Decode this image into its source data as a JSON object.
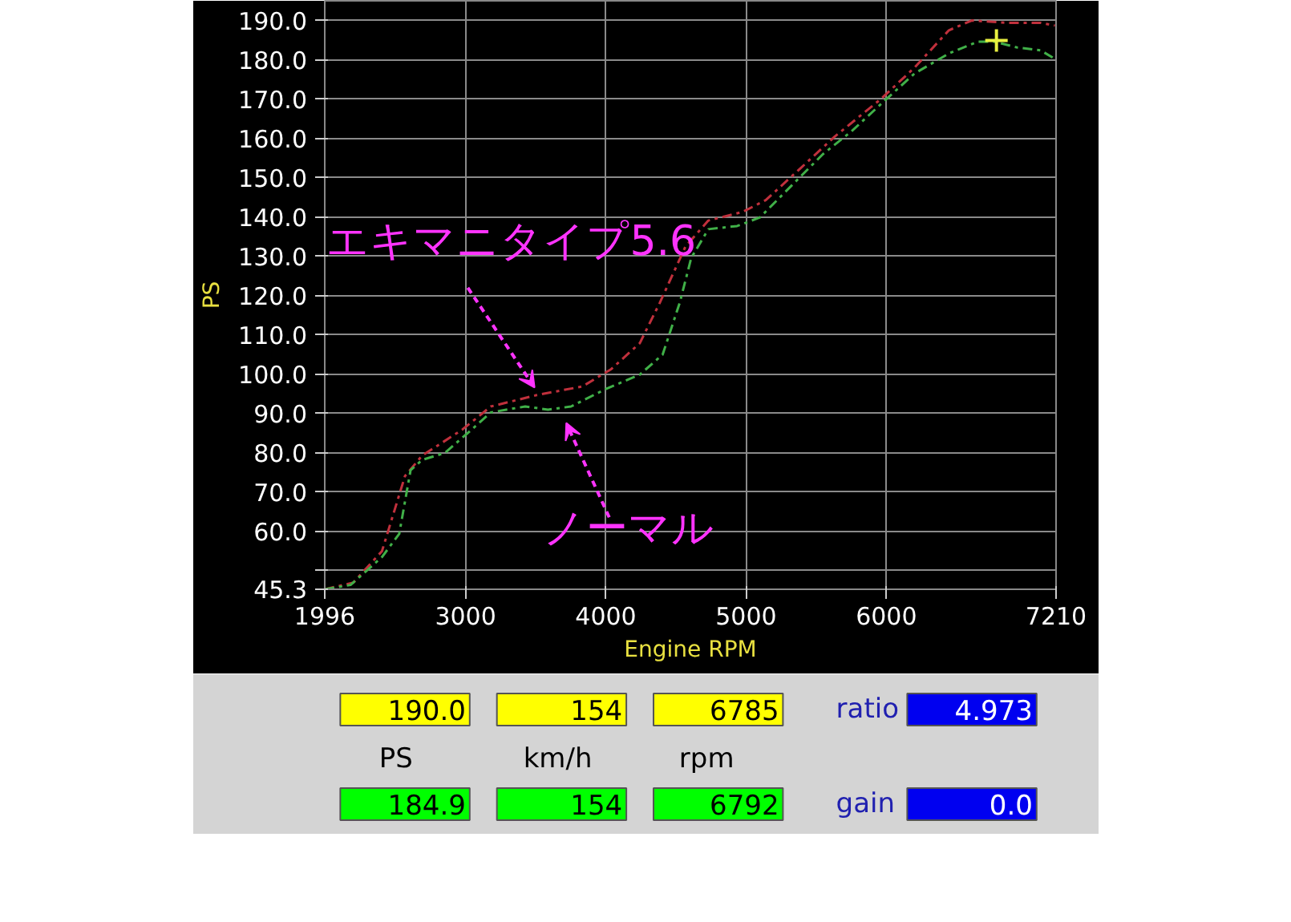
{
  "chart_data": [
    {
      "type": "line",
      "xlabel": "Engine RPM",
      "ylabel": "PS",
      "xlim": [
        1996,
        7210
      ],
      "ylim": [
        45.3,
        195
      ],
      "xticks": [
        1996,
        3000,
        4000,
        5000,
        6000,
        7210
      ],
      "yticks": [
        45.3,
        {
          "value": 50,
          "label": null
        },
        {
          "value": 60,
          "label": "60.0"
        },
        {
          "value": 70,
          "label": "70.0"
        },
        {
          "value": 80,
          "label": "80.0"
        },
        {
          "value": 90,
          "label": "90.0"
        },
        {
          "value": 100,
          "label": "100.0"
        },
        {
          "value": 110,
          "label": "110.0"
        },
        {
          "value": 120,
          "label": "120.0"
        },
        {
          "value": 130,
          "label": "130.0"
        },
        {
          "value": 140,
          "label": "140.0"
        },
        {
          "value": 150,
          "label": "150.0"
        },
        {
          "value": 160,
          "label": "160.0"
        },
        {
          "value": 170,
          "label": "170.0"
        },
        {
          "value": 180,
          "label": "180.0"
        },
        {
          "value": 190,
          "label": "190.0"
        }
      ],
      "grid": true,
      "line_style": "dashed",
      "annotations": [
        "エキマニタイプ5.6",
        "ノーマル"
      ],
      "series": [
        {
          "color": "#c0303c",
          "x": [
            1996,
            2200,
            2404,
            2568,
            2690,
            2976,
            3180,
            3507,
            3833,
            4038,
            4242,
            4385,
            4568,
            4731,
            4976,
            5140,
            5385,
            5630,
            5957,
            6201,
            6446,
            6609,
            6854,
            7100,
            7202
          ],
          "values": [
            45.3,
            47,
            55,
            74.1,
            79.3,
            85.9,
            91.8,
            94.7,
            96.9,
            101.3,
            107.9,
            118.2,
            132.5,
            139.1,
            141.3,
            144.3,
            152.3,
            160.4,
            169.9,
            178,
            187.5,
            190,
            189.4,
            189.4,
            188.7
          ]
        },
        {
          "color": "#40b048",
          "x": [
            1996,
            2180,
            2404,
            2527,
            2608,
            2690,
            2853,
            3017,
            3180,
            3425,
            3588,
            3752,
            3997,
            4242,
            4405,
            4527,
            4609,
            4731,
            4936,
            5099,
            5344,
            5548,
            5752,
            5997,
            6201,
            6446,
            6650,
            6773,
            6936,
            7100,
            7202
          ],
          "values": [
            45.3,
            46.4,
            53.5,
            59.4,
            75.6,
            78.2,
            80,
            85.1,
            90.3,
            91.8,
            91,
            91.8,
            96.2,
            99.9,
            105,
            118.2,
            129.6,
            136.9,
            137.7,
            139.9,
            148.7,
            156,
            161.8,
            169.9,
            176.5,
            181.6,
            184.6,
            184.6,
            183.1,
            182.4,
            180.2
          ]
        },
        {
          "type": "scatter",
          "marker": "cross",
          "color": "#e8f040",
          "x": [
            6785
          ],
          "values": [
            184.9
          ]
        }
      ]
    },
    {
      "type": "other",
      "annotations": [
        "190.0",
        "154",
        "6785",
        "ratio",
        "4.973",
        "PS",
        "km/h",
        "rpm",
        "184.9",
        "154",
        "6792",
        "gain",
        "0.0"
      ]
    }
  ]
}
